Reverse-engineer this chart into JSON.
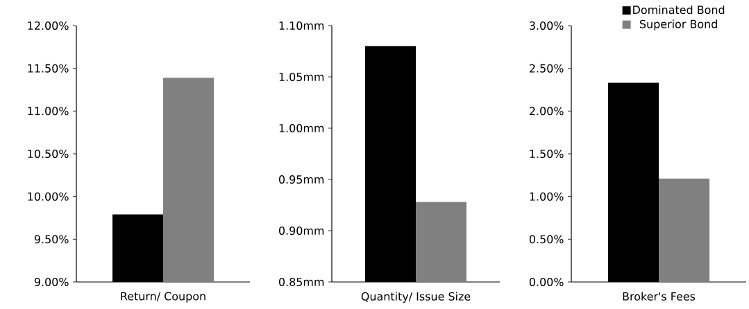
{
  "chart_data": [
    {
      "type": "bar",
      "categories": [
        "Return/ Coupon"
      ],
      "series": [
        {
          "color": "#000000",
          "values": [
            9.79
          ]
        },
        {
          "color": "#808080",
          "values": [
            11.39
          ]
        }
      ],
      "ylim": [
        9,
        12
      ],
      "yticks": [
        {
          "value": 9,
          "label": "9.00%"
        },
        {
          "value": 9.5,
          "label": "9.50%"
        },
        {
          "value": 10,
          "label": "10.00%"
        },
        {
          "value": 10.5,
          "label": "10.50%"
        },
        {
          "value": 11,
          "label": "11.00%"
        },
        {
          "value": 11.5,
          "label": "11.50%"
        },
        {
          "value": 12,
          "label": "12.00%"
        }
      ]
    },
    {
      "type": "bar",
      "categories": [
        "Quantity/ Issue Size"
      ],
      "series": [
        {
          "color": "#000000",
          "values": [
            1.08
          ]
        },
        {
          "color": "#808080",
          "values": [
            0.928
          ]
        }
      ],
      "ylim": [
        0.85,
        1.1
      ],
      "yticks": [
        {
          "value": 0.85,
          "label": "0.85mm"
        },
        {
          "value": 0.9,
          "label": "0.90mm"
        },
        {
          "value": 0.95,
          "label": "0.95mm"
        },
        {
          "value": 1.0,
          "label": "1.00mm"
        },
        {
          "value": 1.05,
          "label": "1.05mm"
        },
        {
          "value": 1.1,
          "label": "1.10mm"
        }
      ]
    },
    {
      "type": "bar",
      "categories": [
        "Broker's Fees"
      ],
      "series": [
        {
          "name": "Dominated Bond",
          "color": "#000000",
          "values": [
            2.33
          ]
        },
        {
          "name": "Superior Bond",
          "color": "#808080",
          "values": [
            1.21
          ]
        }
      ],
      "ylim": [
        0,
        3
      ],
      "yticks": [
        {
          "value": 0,
          "label": "0.00%"
        },
        {
          "value": 0.5,
          "label": "0.50%"
        },
        {
          "value": 1,
          "label": "1.00%"
        },
        {
          "value": 1.5,
          "label": "1.50%"
        },
        {
          "value": 2,
          "label": "2.00%"
        },
        {
          "value": 2.5,
          "label": "2.50%"
        },
        {
          "value": 3,
          "label": "3.00%"
        }
      ],
      "legend": "top right"
    }
  ]
}
